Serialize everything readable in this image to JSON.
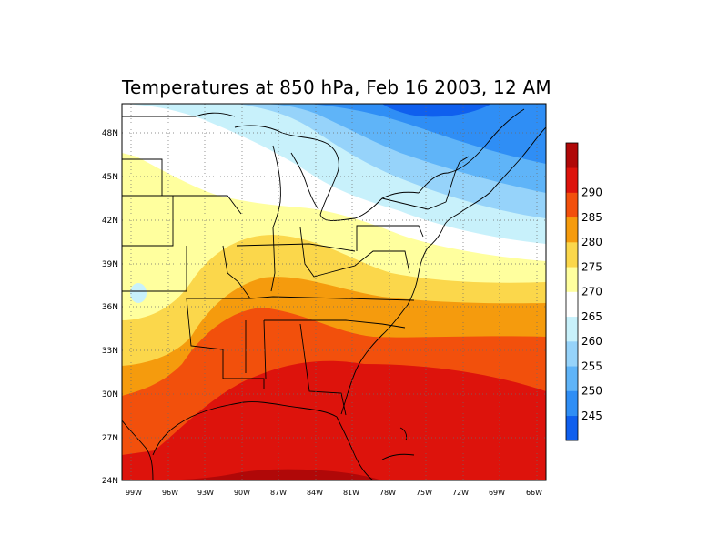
{
  "title": "Temperatures at 850 hPa, Feb 16 2003, 12 AM",
  "map": {
    "lat_labels": [
      "48N",
      "45N",
      "42N",
      "39N",
      "36N",
      "33N",
      "30N",
      "27N",
      "24N"
    ],
    "lon_labels": [
      "99W",
      "96W",
      "93W",
      "90W",
      "87W",
      "84W",
      "81W",
      "78W",
      "75W",
      "72W",
      "69W",
      "66W"
    ]
  },
  "colorbar": {
    "colors": [
      "#0f5fee",
      "#2f8ef5",
      "#5fb4f8",
      "#96d3fa",
      "#c8f1fb",
      "#ffffff",
      "#ffff9e",
      "#fbd74b",
      "#f59b0d",
      "#f2500c",
      "#dd130c",
      "#b00808"
    ],
    "labels": [
      "245",
      "250",
      "255",
      "260",
      "265",
      "270",
      "275",
      "280",
      "285",
      "290"
    ]
  }
}
